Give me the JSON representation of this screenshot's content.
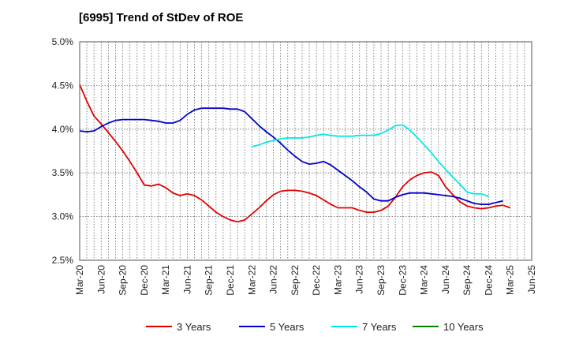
{
  "chart_data": {
    "type": "line",
    "title": "[6995]  Trend of StDev of ROE",
    "xlabel": "",
    "ylabel": "",
    "ylim": [
      2.5,
      5.0
    ],
    "y_ticks": [
      "2.5%",
      "3.0%",
      "3.5%",
      "4.0%",
      "4.5%",
      "5.0%"
    ],
    "x_ticks": [
      "Mar-20",
      "Jun-20",
      "Sep-20",
      "Dec-20",
      "Mar-21",
      "Jun-21",
      "Sep-21",
      "Dec-21",
      "Mar-22",
      "Jun-22",
      "Sep-22",
      "Dec-22",
      "Mar-23",
      "Jun-23",
      "Sep-23",
      "Dec-23",
      "Mar-24",
      "Jun-24",
      "Sep-24",
      "Dec-24",
      "Mar-25",
      "Jun-25"
    ],
    "grid": true,
    "legend_position": "bottom",
    "series": [
      {
        "name": "3 Years",
        "color": "#e00000",
        "start": "Mar-20",
        "values": [
          4.51,
          4.32,
          4.15,
          4.06,
          3.96,
          3.86,
          3.75,
          3.63,
          3.5,
          3.36,
          3.35,
          3.37,
          3.33,
          3.27,
          3.24,
          3.26,
          3.24,
          3.19,
          3.12,
          3.05,
          3.0,
          2.96,
          2.94,
          2.96,
          3.03,
          3.1,
          3.18,
          3.25,
          3.29,
          3.3,
          3.3,
          3.29,
          3.27,
          3.24,
          3.19,
          3.14,
          3.1,
          3.1,
          3.1,
          3.07,
          3.05,
          3.05,
          3.07,
          3.12,
          3.22,
          3.34,
          3.42,
          3.47,
          3.5,
          3.51,
          3.47,
          3.34,
          3.25,
          3.17,
          3.12,
          3.1,
          3.09,
          3.1,
          3.12,
          3.13,
          3.1
        ]
      },
      {
        "name": "5 Years",
        "color": "#0000cc",
        "start": "Mar-20",
        "values": [
          3.98,
          3.97,
          3.98,
          4.03,
          4.07,
          4.1,
          4.11,
          4.11,
          4.11,
          4.11,
          4.1,
          4.09,
          4.07,
          4.07,
          4.1,
          4.17,
          4.22,
          4.24,
          4.24,
          4.24,
          4.24,
          4.23,
          4.23,
          4.2,
          4.12,
          4.04,
          3.97,
          3.91,
          3.84,
          3.76,
          3.69,
          3.63,
          3.6,
          3.61,
          3.63,
          3.59,
          3.53,
          3.47,
          3.41,
          3.34,
          3.28,
          3.2,
          3.18,
          3.18,
          3.22,
          3.25,
          3.27,
          3.27,
          3.27,
          3.26,
          3.25,
          3.24,
          3.23,
          3.21,
          3.18,
          3.15,
          3.14,
          3.14,
          3.16,
          3.18
        ]
      },
      {
        "name": "7 Years",
        "color": "#00e8e8",
        "start": "Mar-22",
        "values": [
          3.8,
          3.82,
          3.85,
          3.87,
          3.89,
          3.9,
          3.9,
          3.9,
          3.91,
          3.93,
          3.94,
          3.93,
          3.92,
          3.92,
          3.92,
          3.93,
          3.93,
          3.93,
          3.95,
          3.99,
          4.04,
          4.05,
          3.99,
          3.91,
          3.82,
          3.73,
          3.63,
          3.54,
          3.45,
          3.37,
          3.28,
          3.26,
          3.26,
          3.23
        ]
      },
      {
        "name": "10 Years",
        "color": "#008000",
        "start": "Mar-20",
        "values": []
      }
    ]
  }
}
